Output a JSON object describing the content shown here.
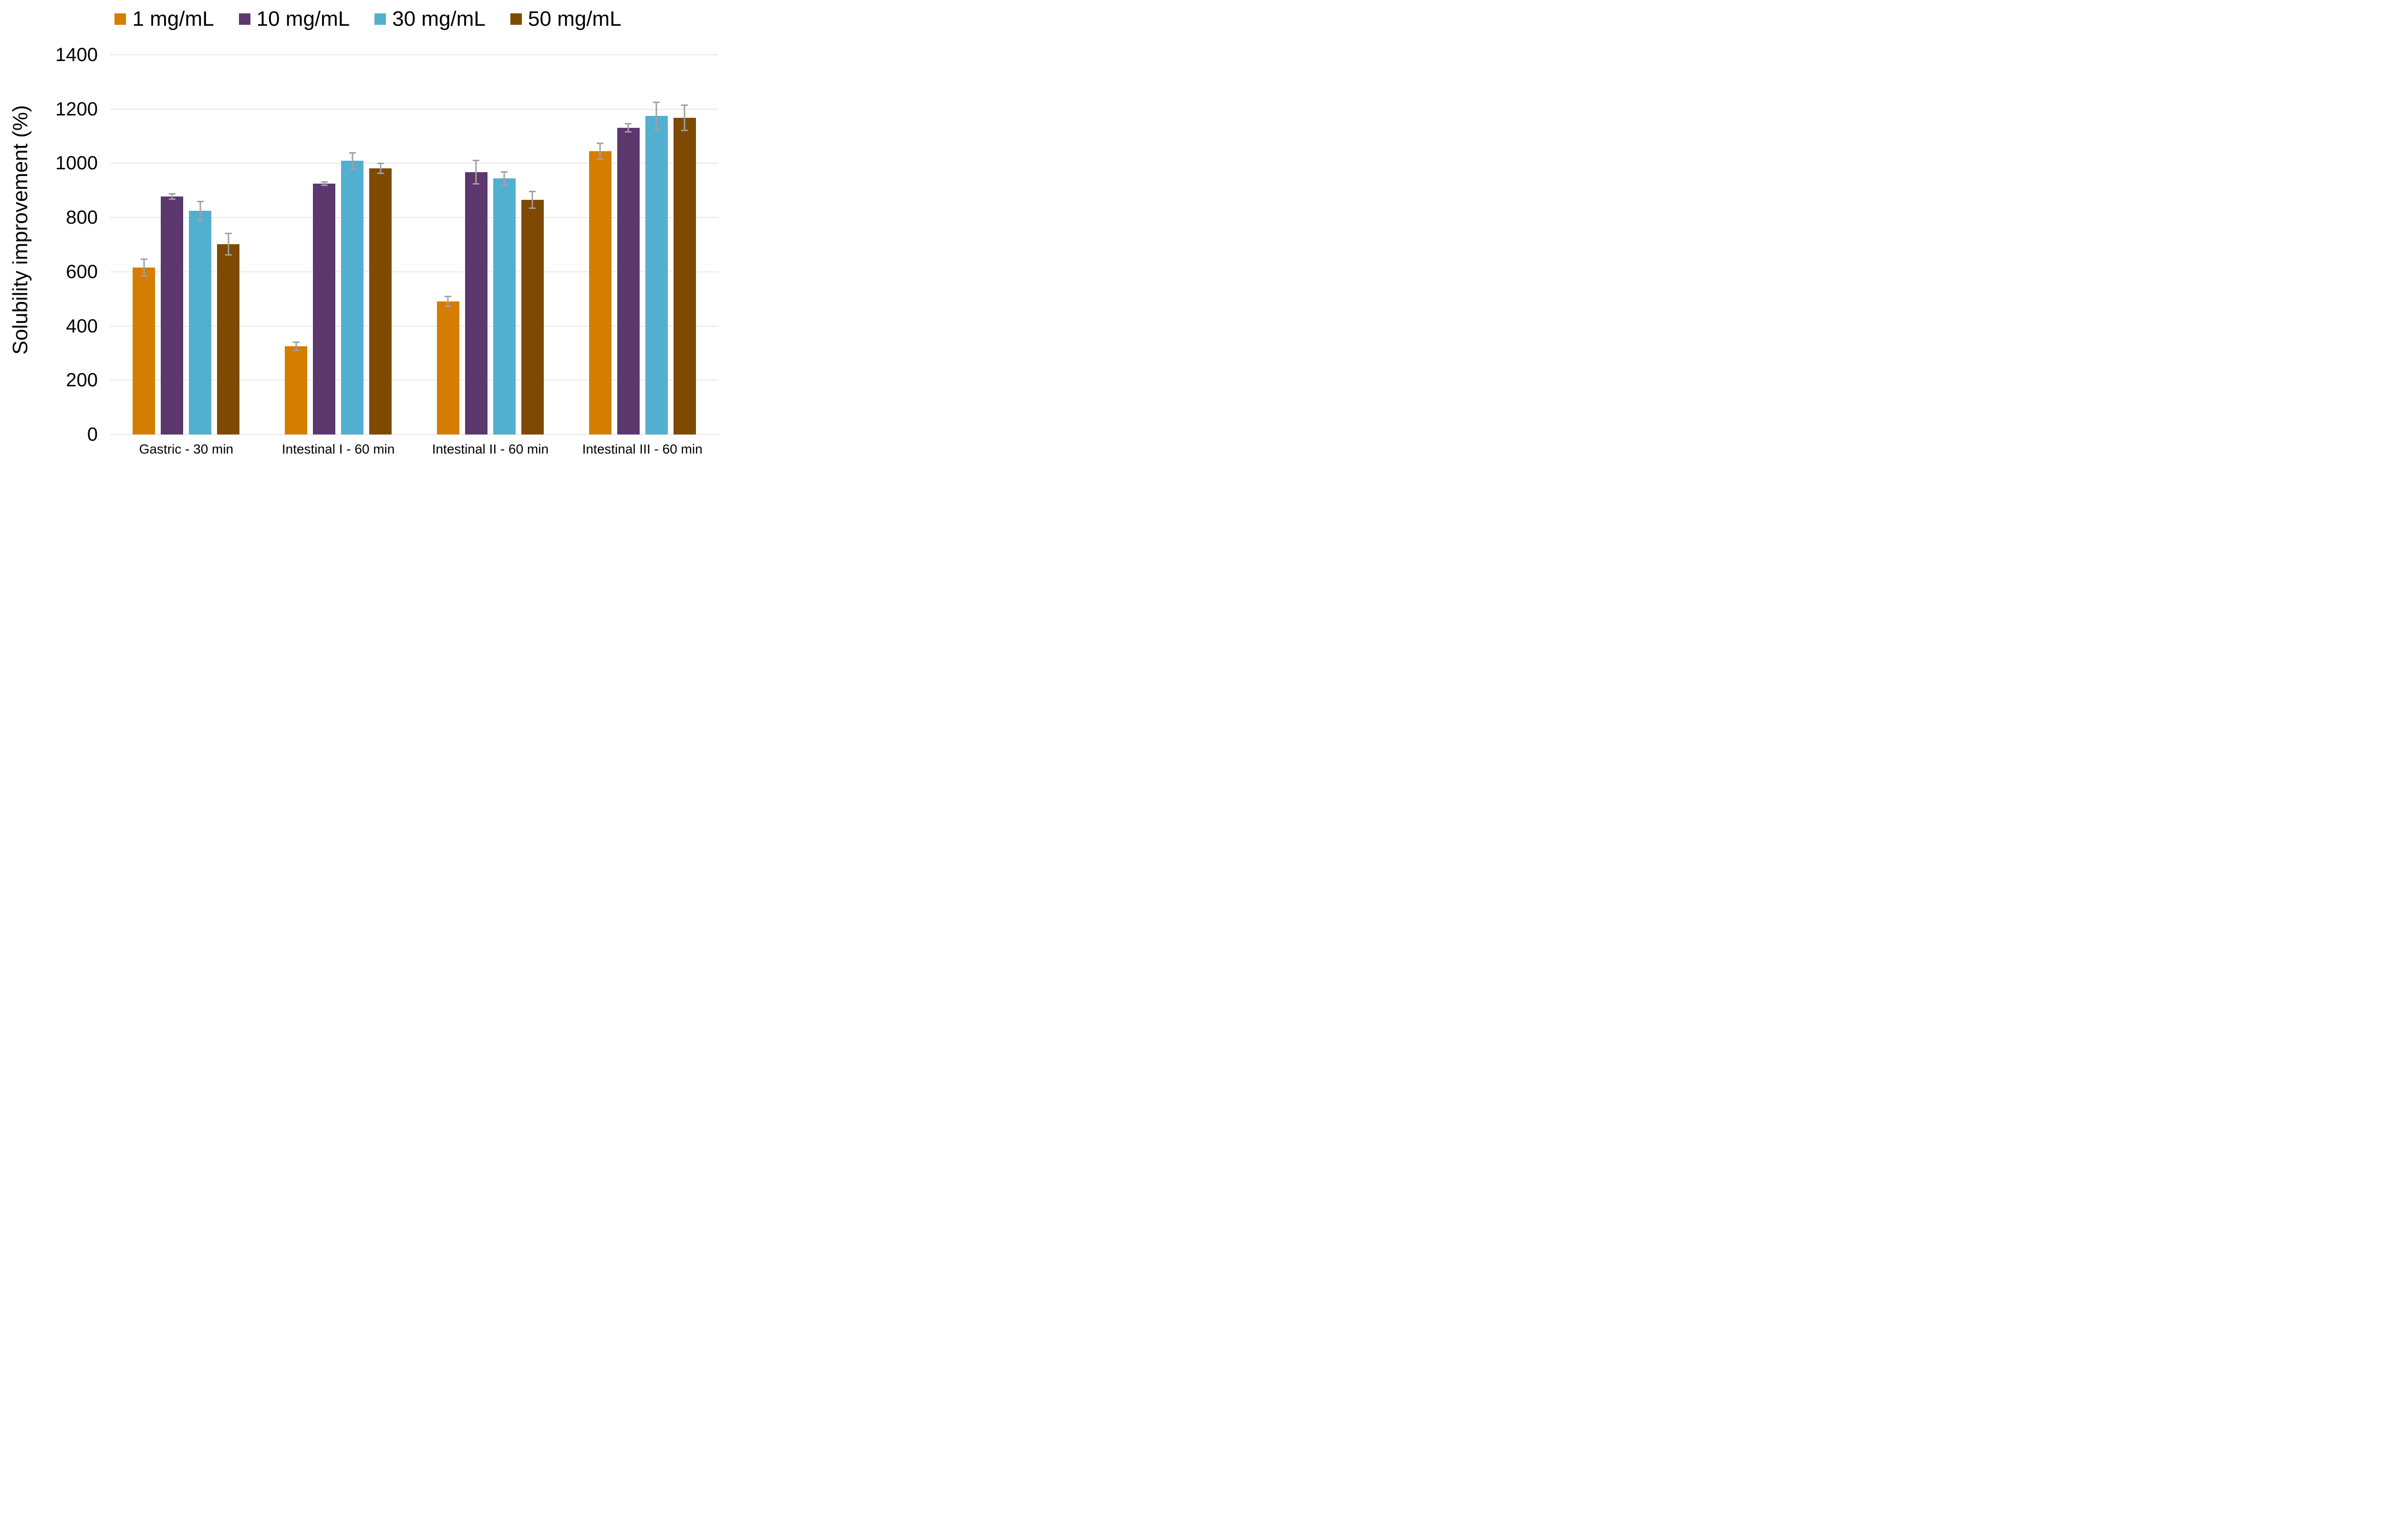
{
  "chart_data": {
    "type": "bar",
    "title": "",
    "xlabel": "",
    "ylabel": "Solubility improvement (%)",
    "ylim": [
      0,
      1400
    ],
    "ytick_step": 200,
    "ytick_labels": [
      "0",
      "200",
      "400",
      "600",
      "800",
      "1000",
      "1200",
      "1400"
    ],
    "grid": "horizontal",
    "legend_position": "top-center",
    "background_color": "#ffffff",
    "gridline_color": "#e8e8e8",
    "error_bar_color": "#a0a0a0",
    "categories": [
      "Gastric - 30 min",
      "Intestinal I - 60 min",
      "Intestinal II - 60 min",
      "Intestinal III - 60 min"
    ],
    "series": [
      {
        "name": "1 mg/mL",
        "color": "#d47d00",
        "values": [
          615,
          325,
          490,
          1045
        ],
        "errors": [
          34,
          17,
          21,
          31
        ]
      },
      {
        "name": "10 mg/mL",
        "color": "#5b376d",
        "values": [
          878,
          926,
          967,
          1131
        ],
        "errors": [
          13,
          9,
          45,
          18
        ]
      },
      {
        "name": "30 mg/mL",
        "color": "#52afd0",
        "values": [
          825,
          1010,
          944,
          1174
        ],
        "errors": [
          37,
          31,
          27,
          53
        ]
      },
      {
        "name": "50 mg/mL",
        "color": "#7e4a02",
        "values": [
          702,
          982,
          866,
          1167
        ],
        "errors": [
          42,
          21,
          33,
          49
        ]
      }
    ]
  }
}
